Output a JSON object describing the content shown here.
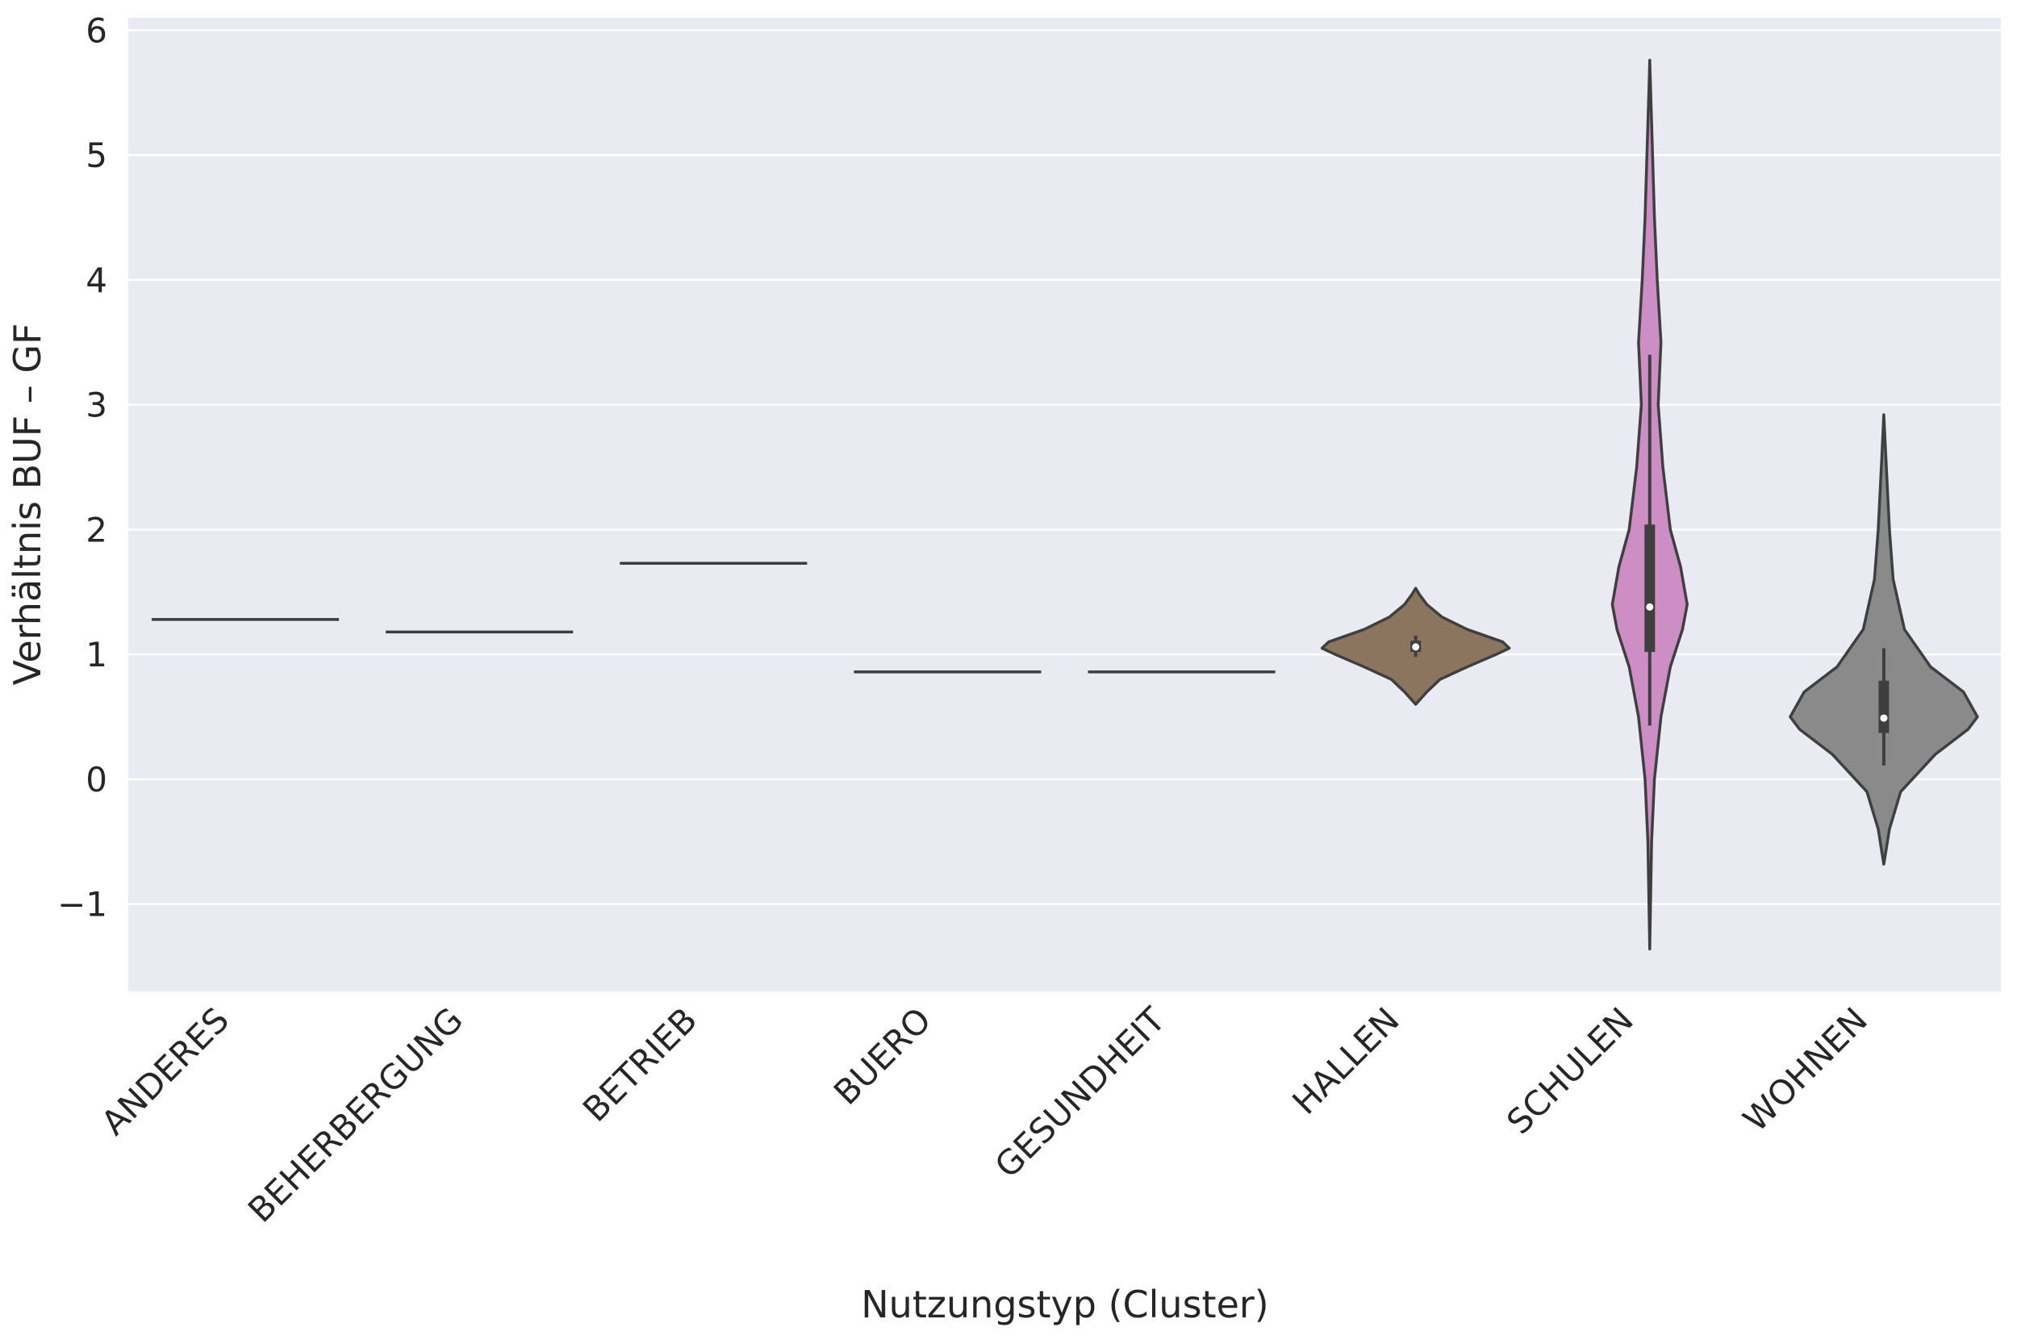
{
  "chart_data": {
    "type": "violin",
    "xlabel": "Nutzungstyp (Cluster)",
    "ylabel": "Verhältnis BUF – GF",
    "ylim": [
      -1.7,
      6.1
    ],
    "yticks": [
      -1,
      0,
      1,
      2,
      3,
      4,
      5,
      6
    ],
    "ytick_labels": [
      "−1",
      "0",
      "1",
      "2",
      "3",
      "4",
      "5",
      "6"
    ],
    "grid": true,
    "categories": [
      "ANDERES",
      "BEHERBERGUNG",
      "BETRIEB",
      "BUERO",
      "GESUNDHEIT",
      "HALLEN",
      "SCHULEN",
      "WOHNEN"
    ],
    "series": [
      {
        "category": "ANDERES",
        "shape": "line",
        "value": 1.28,
        "color": "#3d3d3d"
      },
      {
        "category": "BEHERBERGUNG",
        "shape": "line",
        "value": 1.18,
        "color": "#3d3d3d"
      },
      {
        "category": "BETRIEB",
        "shape": "line",
        "value": 1.73,
        "color": "#3d3d3d"
      },
      {
        "category": "BUERO",
        "shape": "line",
        "value": 0.86,
        "color": "#3d3d3d"
      },
      {
        "category": "GESUNDHEIT",
        "shape": "line",
        "value": 0.86,
        "color": "#3d3d3d"
      },
      {
        "category": "HALLEN",
        "shape": "violin",
        "color": "#8c755f",
        "density": [
          [
            0.6,
            0.0
          ],
          [
            0.7,
            0.12
          ],
          [
            0.8,
            0.26
          ],
          [
            0.9,
            0.55
          ],
          [
            1.0,
            0.86
          ],
          [
            1.05,
            1.0
          ],
          [
            1.1,
            0.93
          ],
          [
            1.2,
            0.55
          ],
          [
            1.3,
            0.28
          ],
          [
            1.4,
            0.12
          ],
          [
            1.48,
            0.04
          ],
          [
            1.53,
            0.0
          ]
        ],
        "median": 1.06,
        "q1": 1.02,
        "q3": 1.11,
        "whisker_low": 0.98,
        "whisker_high": 1.15
      },
      {
        "category": "SCHULEN",
        "shape": "violin",
        "color": "#cc8ec4",
        "density": [
          [
            -1.36,
            0.0
          ],
          [
            -0.5,
            0.02
          ],
          [
            0.0,
            0.05
          ],
          [
            0.5,
            0.12
          ],
          [
            0.9,
            0.22
          ],
          [
            1.2,
            0.35
          ],
          [
            1.4,
            0.4
          ],
          [
            1.7,
            0.33
          ],
          [
            2.0,
            0.22
          ],
          [
            2.5,
            0.14
          ],
          [
            3.0,
            0.09
          ],
          [
            3.5,
            0.12
          ],
          [
            4.0,
            0.08
          ],
          [
            4.5,
            0.05
          ],
          [
            5.0,
            0.03
          ],
          [
            5.5,
            0.01
          ],
          [
            5.76,
            0.0
          ]
        ],
        "median": 1.38,
        "q1": 1.02,
        "q3": 2.04,
        "whisker_low": 0.43,
        "whisker_high": 3.4
      },
      {
        "category": "WOHNEN",
        "shape": "violin",
        "color": "#8a8a8a",
        "density": [
          [
            -0.68,
            0.0
          ],
          [
            -0.4,
            0.06
          ],
          [
            -0.1,
            0.18
          ],
          [
            0.2,
            0.55
          ],
          [
            0.4,
            0.9
          ],
          [
            0.5,
            1.0
          ],
          [
            0.7,
            0.85
          ],
          [
            0.9,
            0.5
          ],
          [
            1.2,
            0.22
          ],
          [
            1.6,
            0.1
          ],
          [
            2.0,
            0.06
          ],
          [
            2.3,
            0.04
          ],
          [
            2.6,
            0.02
          ],
          [
            2.92,
            0.0
          ]
        ],
        "median": 0.49,
        "q1": 0.37,
        "q3": 0.79,
        "whisker_low": 0.11,
        "whisker_high": 1.05
      }
    ]
  }
}
